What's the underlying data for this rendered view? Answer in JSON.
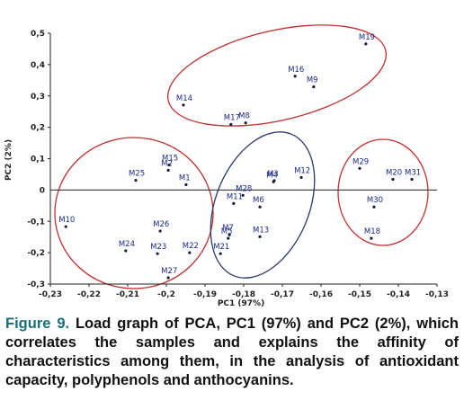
{
  "chart_data": {
    "type": "scatter",
    "x_label": "PC1 (97%)",
    "y_label": "PC2 (2%)",
    "point_labels": [
      "M19",
      "M16",
      "M9",
      "M14",
      "M17",
      "M8",
      "M15",
      "M2",
      "M25",
      "M1",
      "M10",
      "M26",
      "M24",
      "M23",
      "M22",
      "M27",
      "M3",
      "M4",
      "M12",
      "M28",
      "M11",
      "M6",
      "M13",
      "M7",
      "M5",
      "M21",
      "M29",
      "M20",
      "M31",
      "M30",
      "M18"
    ],
    "x": [
      -0.1484,
      -0.1667,
      -0.1619,
      -0.1956,
      -0.1833,
      -0.1795,
      -0.1993,
      -0.1995,
      -0.2079,
      -0.1949,
      -0.226,
      -0.2016,
      -0.2105,
      -0.2023,
      -0.194,
      -0.1995,
      -0.1721,
      -0.1723,
      -0.1651,
      -0.1802,
      -0.1826,
      -0.1758,
      -0.1758,
      -0.1837,
      -0.184,
      -0.186,
      -0.15,
      -0.1414,
      -0.1365,
      -0.1463,
      -0.147
    ],
    "values": [
      0.466,
      0.363,
      0.329,
      0.271,
      0.209,
      0.214,
      0.08,
      0.063,
      0.031,
      0.017,
      -0.117,
      -0.131,
      -0.194,
      -0.203,
      -0.2,
      -0.28,
      0.03,
      0.026,
      0.04,
      -0.017,
      -0.043,
      -0.054,
      -0.149,
      -0.143,
      -0.154,
      -0.203,
      0.069,
      0.034,
      0.034,
      -0.054,
      -0.154
    ],
    "color": "#1a1a3a",
    "xlim": [
      -0.23,
      -0.13
    ],
    "xticks": [
      {
        "value": -0.23,
        "label": "-0,23"
      },
      {
        "value": -0.22,
        "label": "-0,22"
      },
      {
        "value": -0.21,
        "label": "-0,21"
      },
      {
        "value": -0.2,
        "label": "-0,2"
      },
      {
        "value": -0.19,
        "label": "-0,19"
      },
      {
        "value": -0.18,
        "label": "-0,18"
      },
      {
        "value": -0.17,
        "label": "-0,17"
      },
      {
        "value": -0.16,
        "label": "-0,16"
      },
      {
        "value": -0.15,
        "label": "-0,15"
      },
      {
        "value": -0.14,
        "label": "-0,14"
      },
      {
        "value": -0.13,
        "label": "-0,13"
      }
    ],
    "ylim": [
      -0.3,
      0.5
    ],
    "yticks": [
      {
        "value": -0.3,
        "label": "-0,3"
      },
      {
        "value": -0.2,
        "label": "-0,2"
      },
      {
        "value": -0.1,
        "label": "-0,1"
      },
      0,
      {
        "value": 0.1,
        "label": "0,1"
      },
      {
        "value": 0.2,
        "label": "0,2"
      },
      {
        "value": 0.3,
        "label": "0,3"
      },
      {
        "value": 0.4,
        "label": "0,4"
      },
      {
        "value": 0.5,
        "label": "0,5"
      }
    ],
    "grid": false
  },
  "caption": {
    "label": "Figure 9.",
    "text": " Load graph of PCA, PC1 (97%) and PC2 (2%), which correlates the samples and explains the affinity of characteristics among them, in the analysis of antioxidant capacity, polyphenols and anthocyanins."
  }
}
